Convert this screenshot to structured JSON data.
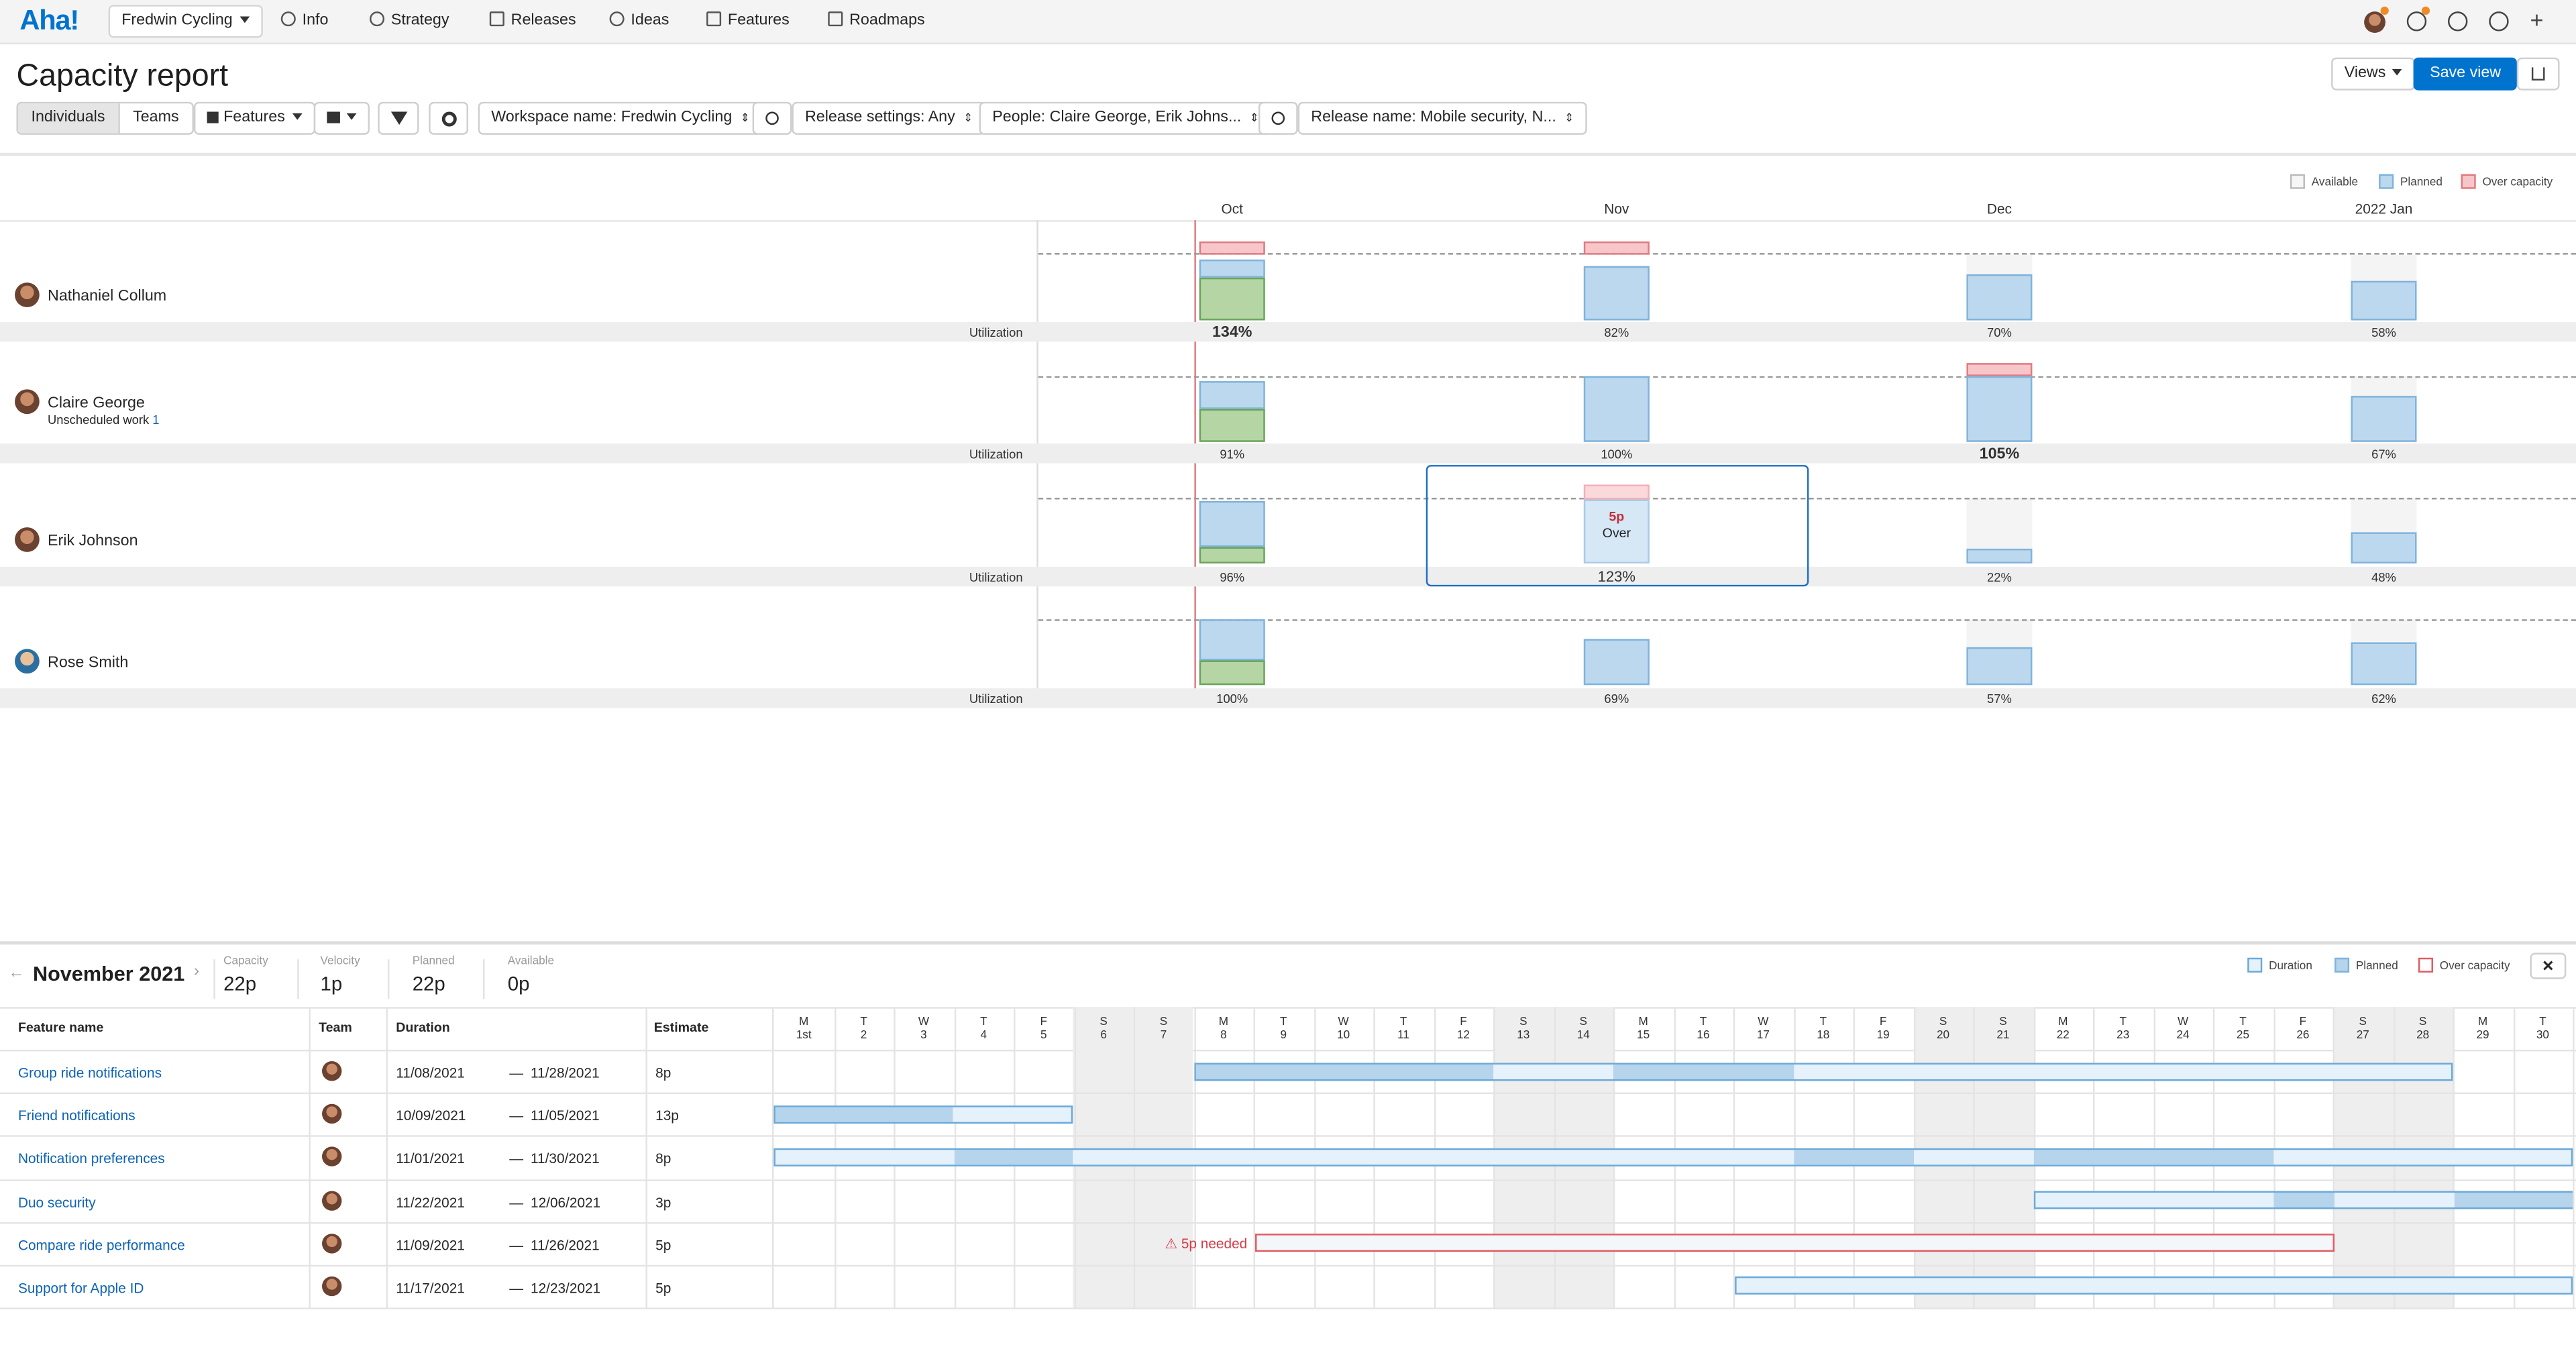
{
  "nav": {
    "logo": "Aha!",
    "workspace": "Fredwin Cycling",
    "items": [
      "Info",
      "Strategy",
      "Releases",
      "Ideas",
      "Features",
      "Roadmaps"
    ]
  },
  "page": {
    "title": "Capacity report",
    "views_label": "Views",
    "save_label": "Save view"
  },
  "toolbar": {
    "mode_individuals": "Individuals",
    "mode_teams": "Teams",
    "features_label": "Features",
    "filter_workspace": "Workspace name: Fredwin Cycling",
    "filter_release_settings": "Release settings: Any",
    "filter_people": "People: Claire George, Erik Johns...",
    "filter_release_name": "Release name: Mobile security, N..."
  },
  "legend_top": {
    "available": "Available",
    "planned": "Planned",
    "over": "Over capacity"
  },
  "months": [
    "Oct",
    "Nov",
    "Dec",
    "2022 Jan"
  ],
  "utilization_label": "Utilization",
  "people": [
    {
      "name": "Nathaniel Collum",
      "utilization": [
        "134%",
        "82%",
        "70%",
        "58%"
      ]
    },
    {
      "name": "Claire George",
      "sub": "Unscheduled work",
      "sub_count": "1",
      "utilization": [
        "91%",
        "100%",
        "105%",
        "67%"
      ]
    },
    {
      "name": "Erik Johnson",
      "utilization": [
        "96%",
        "123%",
        "22%",
        "48%"
      ]
    },
    {
      "name": "Rose Smith",
      "utilization": [
        "100%",
        "69%",
        "57%",
        "62%"
      ]
    }
  ],
  "tooltip": {
    "amount": "5p",
    "label": "Over"
  },
  "bottom": {
    "month": "November 2021",
    "stats": [
      {
        "label": "Capacity",
        "value": "22p"
      },
      {
        "label": "Velocity",
        "value": "1p"
      },
      {
        "label": "Planned",
        "value": "22p"
      },
      {
        "label": "Available",
        "value": "0p"
      }
    ],
    "legend": {
      "duration": "Duration",
      "planned": "Planned",
      "over": "Over capacity"
    },
    "close": "✕",
    "headers": {
      "feature": "Feature name",
      "team": "Team",
      "duration": "Duration",
      "estimate": "Estimate"
    },
    "days": [
      [
        "M",
        "1st"
      ],
      [
        "T",
        "2"
      ],
      [
        "W",
        "3"
      ],
      [
        "T",
        "4"
      ],
      [
        "F",
        "5"
      ],
      [
        "S",
        "6"
      ],
      [
        "S",
        "7"
      ],
      [
        "M",
        "8"
      ],
      [
        "T",
        "9"
      ],
      [
        "W",
        "10"
      ],
      [
        "T",
        "11"
      ],
      [
        "F",
        "12"
      ],
      [
        "S",
        "13"
      ],
      [
        "S",
        "14"
      ],
      [
        "M",
        "15"
      ],
      [
        "T",
        "16"
      ],
      [
        "W",
        "17"
      ],
      [
        "T",
        "18"
      ],
      [
        "F",
        "19"
      ],
      [
        "S",
        "20"
      ],
      [
        "S",
        "21"
      ],
      [
        "M",
        "22"
      ],
      [
        "T",
        "23"
      ],
      [
        "W",
        "24"
      ],
      [
        "T",
        "25"
      ],
      [
        "F",
        "26"
      ],
      [
        "S",
        "27"
      ],
      [
        "S",
        "28"
      ],
      [
        "M",
        "29"
      ],
      [
        "T",
        "30"
      ]
    ],
    "features": [
      {
        "name": "Group ride notifications",
        "start": "11/08/2021",
        "end": "11/28/2021",
        "estimate": "8p"
      },
      {
        "name": "Friend notifications",
        "start": "10/09/2021",
        "end": "11/05/2021",
        "estimate": "13p"
      },
      {
        "name": "Notification preferences",
        "start": "11/01/2021",
        "end": "11/30/2021",
        "estimate": "8p"
      },
      {
        "name": "Duo security",
        "start": "11/22/2021",
        "end": "12/06/2021",
        "estimate": "3p"
      },
      {
        "name": "Compare ride performance",
        "start": "11/09/2021",
        "end": "11/26/2021",
        "estimate": "5p"
      },
      {
        "name": "Support for Apple ID",
        "start": "11/17/2021",
        "end": "12/23/2021",
        "estimate": "5p"
      }
    ],
    "warning": "5p needed",
    "dash": "—"
  },
  "colors": {
    "accent": "#0073cf",
    "planned": "#bcd8ee",
    "done": "#b5d5a5",
    "over": "#f7c6c9",
    "link": "#0e63b5"
  }
}
